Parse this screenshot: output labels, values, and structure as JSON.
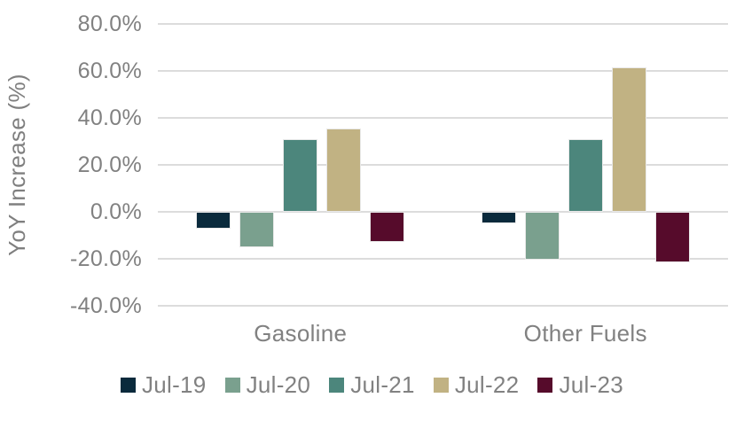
{
  "chart_data": {
    "type": "bar",
    "title": "",
    "xlabel": "",
    "ylabel": "YoY Increase (%)",
    "categories": [
      "Gasoline",
      "Other Fuels"
    ],
    "series": [
      {
        "name": "Jul-19",
        "color": "#0a2a3c",
        "values": [
          -7.0,
          -4.9
        ]
      },
      {
        "name": "Jul-20",
        "color": "#7aa08e",
        "values": [
          -15.2,
          -20.5
        ]
      },
      {
        "name": "Jul-21",
        "color": "#4c867c",
        "values": [
          30.8,
          31.1
        ]
      },
      {
        "name": "Jul-22",
        "color": "#c1b283",
        "values": [
          35.6,
          61.4
        ]
      },
      {
        "name": "Jul-23",
        "color": "#560b2b",
        "values": [
          -12.9,
          -21.5
        ]
      }
    ],
    "ylim": [
      -40,
      80
    ],
    "yticks": [
      {
        "value": 80,
        "label": "80.0%"
      },
      {
        "value": 60,
        "label": "60.0%"
      },
      {
        "value": 40,
        "label": "40.0%"
      },
      {
        "value": 20,
        "label": "20.0%"
      },
      {
        "value": 0,
        "label": "0.0%"
      },
      {
        "value": -20,
        "label": "-20.0%"
      },
      {
        "value": -40,
        "label": "-40.0%"
      }
    ],
    "grid": "horizontal",
    "legend_position": "bottom",
    "colors": {
      "text": "#818181",
      "gridline": "#dcdcdc",
      "background": "#ffffff"
    }
  }
}
